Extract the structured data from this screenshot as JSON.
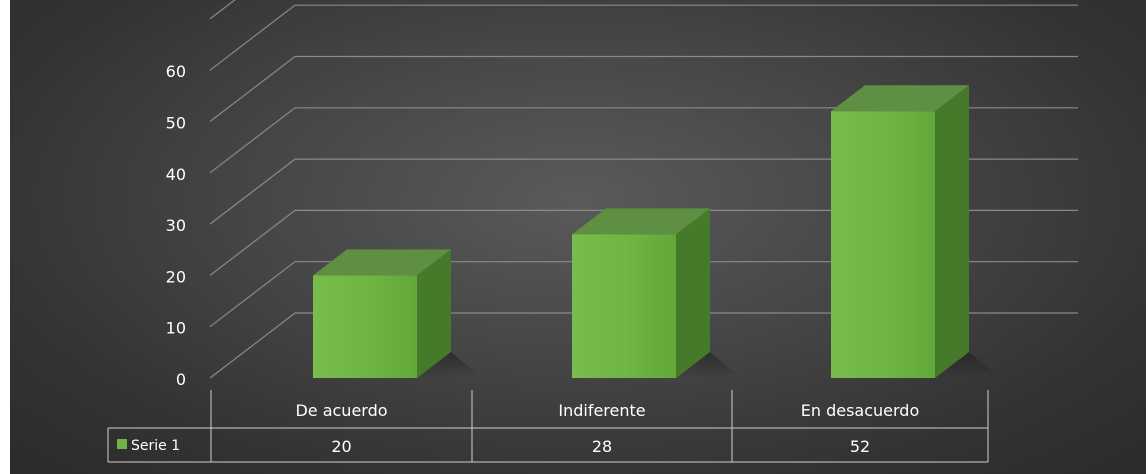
{
  "chart_data": {
    "type": "bar",
    "categories": [
      "De acuerdo",
      "Indiferente",
      "En desacuerdo"
    ],
    "series": [
      {
        "name": "Serie 1",
        "values": [
          20,
          28,
          52
        ]
      }
    ],
    "ylim": [
      0,
      60
    ],
    "yticks": [
      0,
      10,
      20,
      30,
      40,
      50,
      60
    ],
    "grid": true,
    "legend": "data-table-below",
    "style": "3d-column",
    "colors": {
      "background": "#3c3c3c",
      "bar_front": "#6fb543",
      "bar_top": "#5e8f43",
      "bar_side": "#457a2a",
      "text": "#ffffff",
      "grid": "#8a8a8a"
    }
  }
}
